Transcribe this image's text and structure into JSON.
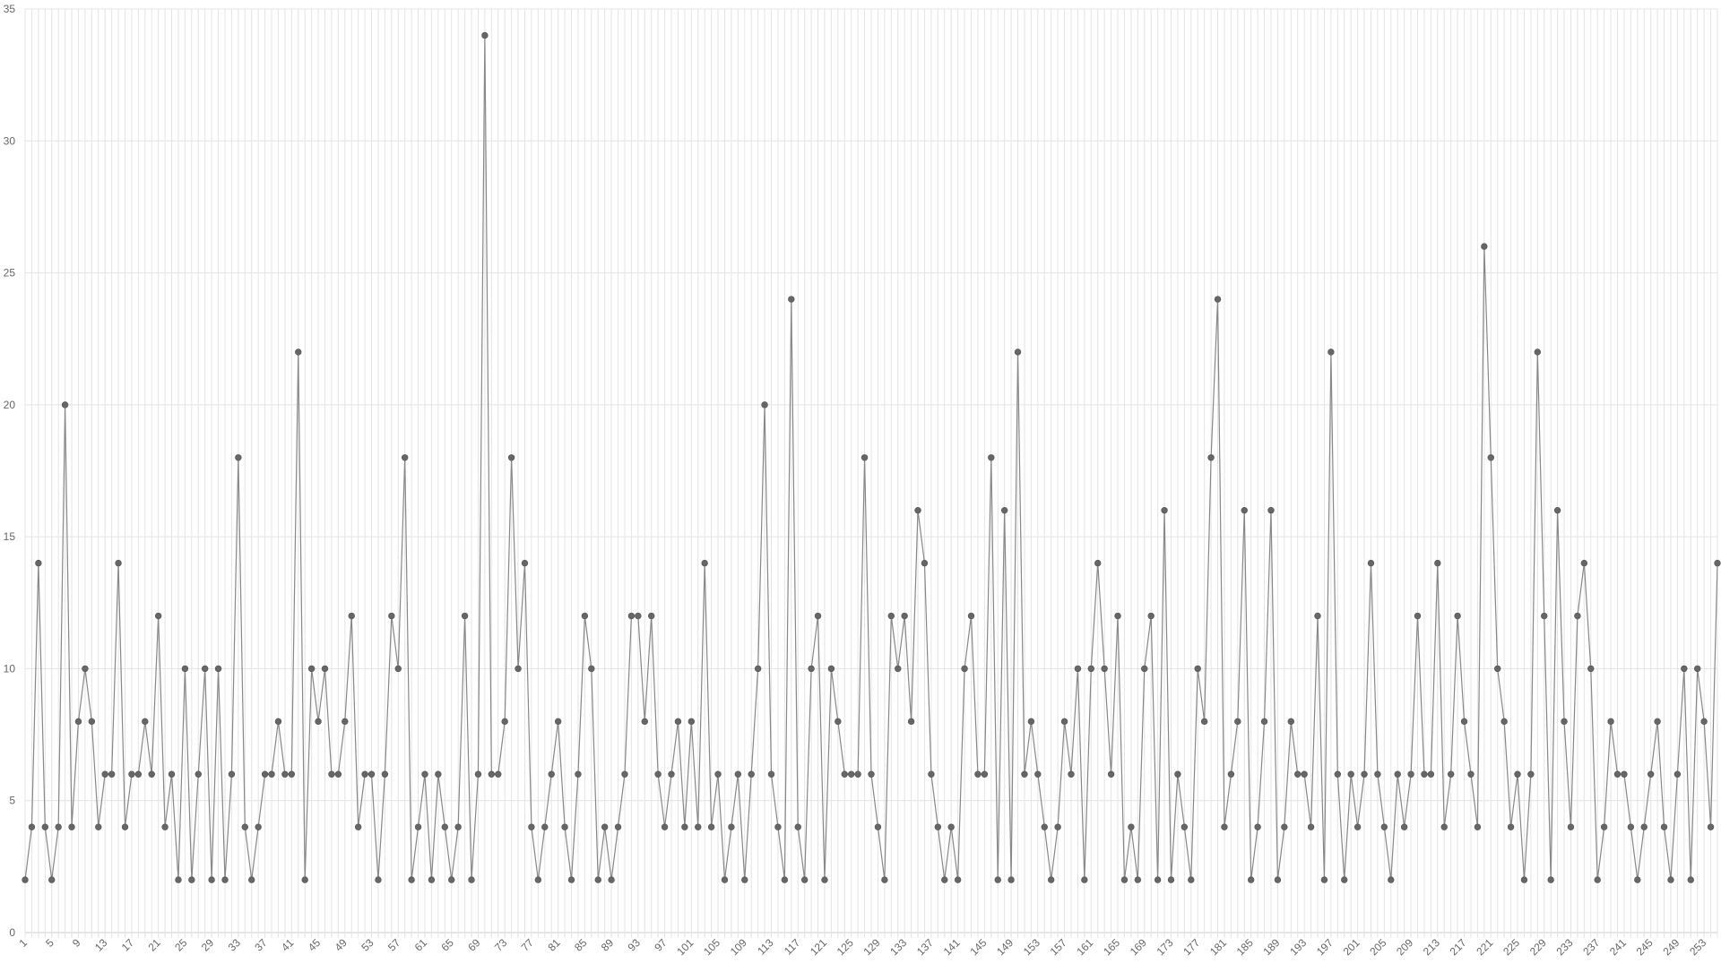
{
  "chart_data": {
    "type": "line",
    "title": "",
    "xlabel": "",
    "ylabel": "",
    "x_start": 1,
    "ylim": [
      0,
      35
    ],
    "y_ticks": [
      0,
      5,
      10,
      15,
      20,
      25,
      30,
      35
    ],
    "x_tick_step": 4,
    "grid": true,
    "series": [
      {
        "values": [
          2,
          4,
          14,
          4,
          2,
          4,
          20,
          4,
          8,
          10,
          8,
          4,
          6,
          6,
          14,
          4,
          6,
          6,
          8,
          6,
          12,
          4,
          6,
          2,
          10,
          2,
          6,
          10,
          2,
          10,
          2,
          6,
          18,
          4,
          2,
          4,
          6,
          6,
          8,
          6,
          6,
          22,
          2,
          10,
          8,
          10,
          6,
          6,
          8,
          12,
          4,
          6,
          6,
          2,
          6,
          12,
          10,
          18,
          2,
          4,
          6,
          2,
          6,
          4,
          2,
          4,
          12,
          2,
          6,
          34,
          6,
          6,
          8,
          18,
          10,
          14,
          4,
          2,
          4,
          6,
          8,
          4,
          2,
          6,
          12,
          10,
          2,
          4,
          2,
          4,
          6,
          12,
          12,
          8,
          12,
          6,
          4,
          6,
          8,
          4,
          8,
          4,
          14,
          4,
          6,
          2,
          4,
          6,
          2,
          6,
          10,
          20,
          6,
          4,
          2,
          24,
          4,
          2,
          10,
          12,
          2,
          10,
          8,
          6,
          6,
          6,
          18,
          6,
          4,
          2,
          12,
          10,
          12,
          8,
          16,
          14,
          6,
          4,
          2,
          4,
          2,
          10,
          12,
          6,
          6,
          18,
          2,
          16,
          2,
          22,
          6,
          8,
          6,
          4,
          2,
          4,
          8,
          6,
          10,
          2,
          10,
          14,
          10,
          6,
          12,
          2,
          4,
          2,
          10,
          12,
          2,
          16,
          2,
          6,
          4,
          2,
          10,
          8,
          18,
          24,
          4,
          6,
          8,
          16,
          2,
          4,
          8,
          16,
          2,
          4,
          8,
          6,
          6,
          4,
          12,
          2,
          22,
          6,
          2,
          6,
          4,
          6,
          14,
          6,
          4,
          2,
          6,
          4,
          6,
          12,
          6,
          6,
          14,
          4,
          6,
          12,
          8,
          6,
          4,
          26,
          18,
          10,
          8,
          4,
          6,
          2,
          6,
          22,
          12,
          2,
          16,
          8,
          4,
          12,
          14,
          10,
          2,
          4,
          8,
          6,
          6,
          4,
          2,
          4,
          6,
          8,
          4,
          2,
          6,
          10,
          2,
          10,
          8,
          4,
          14
        ]
      }
    ],
    "colors": {
      "line": "#888888",
      "point": "#666666",
      "grid": "#e4e4e4",
      "axis": "#cccccc",
      "label": "#666666"
    }
  }
}
